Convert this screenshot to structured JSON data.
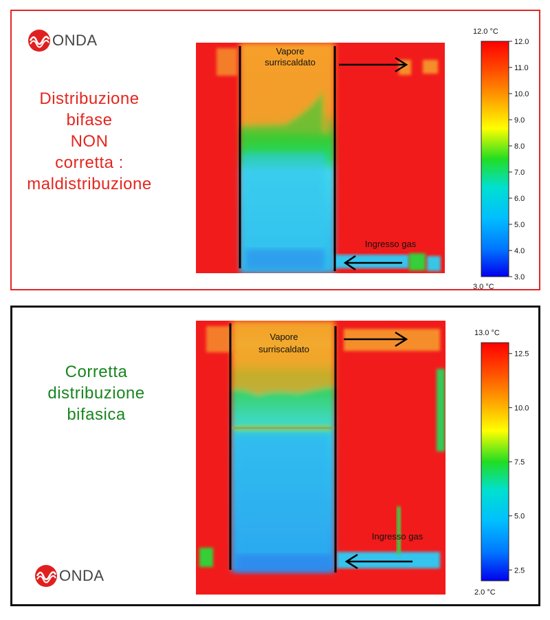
{
  "brand": {
    "name": "ONDA"
  },
  "panels": [
    {
      "id": "maldistribution",
      "border_color": "#e02626",
      "caption_color": "#e3271f",
      "caption_lines": [
        "Distribuzione",
        "bifase",
        "NON",
        "corretta :",
        "maldistribuzione"
      ],
      "labels": {
        "outlet": [
          "Vapore",
          "surriscaldato"
        ],
        "inlet": "Ingresso gas"
      },
      "scale": {
        "max_label": "12.0 °C",
        "min_label": "3.0 °C",
        "ticks": [
          "12.0",
          "11.0",
          "10.0",
          "9.0",
          "8.0",
          "7.0",
          "6.0",
          "5.0",
          "4.0",
          "3.0"
        ]
      }
    },
    {
      "id": "correct",
      "border_color": "#111111",
      "caption_color": "#17861f",
      "caption_lines": [
        "Corretta",
        "distribuzione",
        "bifasica"
      ],
      "labels": {
        "outlet": [
          "Vapore",
          "surriscaldato"
        ],
        "inlet": "Ingresso gas"
      },
      "scale": {
        "max_label": "13.0 °C",
        "min_label": "2.0 °C",
        "ticks": [
          "12.5",
          "10.0",
          "7.5",
          "5.0",
          "2.5"
        ]
      }
    }
  ],
  "colors": {
    "hot": "#f21b1b",
    "warm": "#f79a23",
    "mid": "#2fcf35",
    "cold": "#2ec8ee",
    "cold_edge": "#1f8ee8"
  }
}
